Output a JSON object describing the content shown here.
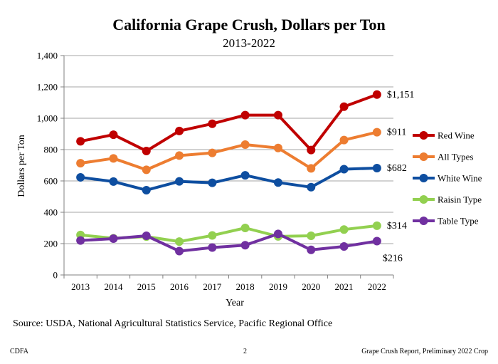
{
  "chart_data": {
    "type": "line",
    "title": "California Grape Crush, Dollars per Ton",
    "subtitle": "2013-2022",
    "xlabel": "Year",
    "ylabel": "Dollars per Ton",
    "ylim": [
      0,
      1400
    ],
    "yticks": [
      0,
      200,
      400,
      600,
      800,
      1000,
      1200,
      1400
    ],
    "ytick_labels": [
      "0",
      "200",
      "400",
      "600",
      "800",
      "1,000",
      "1,200",
      "1,400"
    ],
    "categories": [
      "2013",
      "2014",
      "2015",
      "2016",
      "2017",
      "2018",
      "2019",
      "2020",
      "2021",
      "2022"
    ],
    "grid": true,
    "legend_position": "right",
    "series": [
      {
        "name": "Red Wine",
        "color": "#c00000",
        "values": [
          853,
          895,
          791,
          919,
          965,
          1020,
          1020,
          797,
          1074,
          1151
        ],
        "end_label": "$1,151"
      },
      {
        "name": "All Types",
        "color": "#ed7d31",
        "values": [
          713,
          744,
          671,
          762,
          779,
          832,
          810,
          680,
          861,
          911
        ],
        "end_label": "$911"
      },
      {
        "name": "White Wine",
        "color": "#0e4ea0",
        "values": [
          623,
          596,
          541,
          597,
          588,
          636,
          590,
          560,
          675,
          682
        ],
        "end_label": "$682"
      },
      {
        "name": "Raisin Type",
        "color": "#92d050",
        "values": [
          255,
          234,
          245,
          213,
          252,
          300,
          246,
          250,
          290,
          314
        ],
        "end_label": "$314"
      },
      {
        "name": "Table Type",
        "color": "#7030a0",
        "values": [
          220,
          232,
          250,
          152,
          175,
          190,
          262,
          160,
          182,
          216
        ],
        "end_label": "$216"
      }
    ]
  },
  "source": "Source: USDA, National Agricultural Statistics Service, Pacific Regional Office",
  "footer": {
    "left": "CDFA",
    "center": "2",
    "right": "Grape Crush Report, Preliminary 2022 Crop"
  }
}
